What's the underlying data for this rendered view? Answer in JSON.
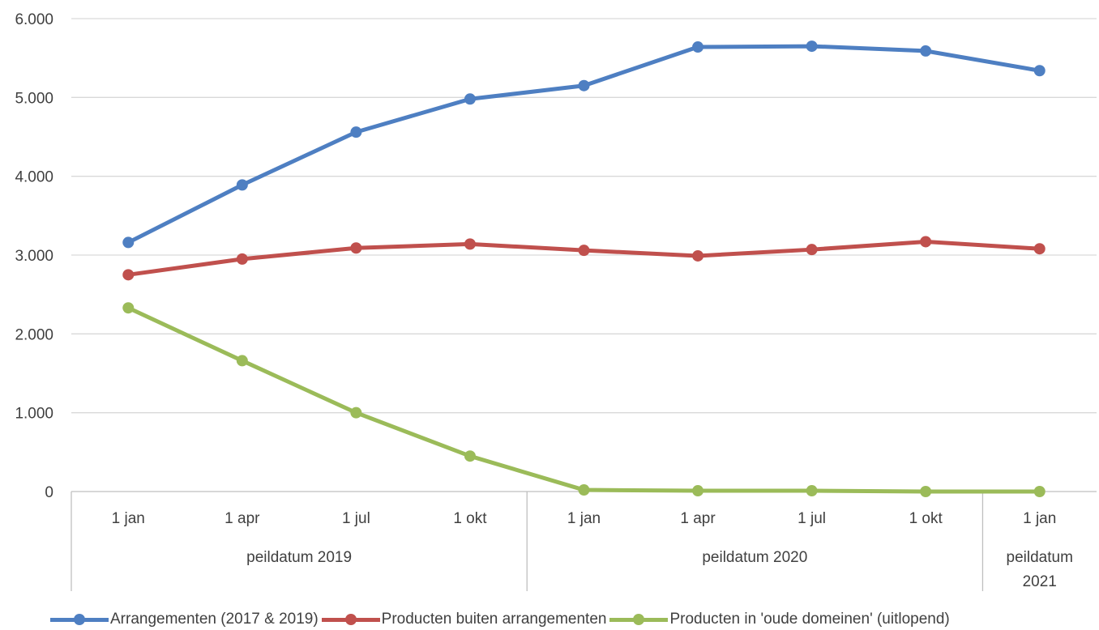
{
  "colors": {
    "background": "#ffffff",
    "grid": "#d9d9d9",
    "axis": "#bfbfbf",
    "text": "#404040"
  },
  "chart_data": {
    "type": "line",
    "categories": [
      "1 jan",
      "1 apr",
      "1 jul",
      "1 okt",
      "1 jan",
      "1 apr",
      "1 jul",
      "1 okt",
      "1 jan"
    ],
    "groups": [
      {
        "label": "peildatum 2019",
        "span": 4
      },
      {
        "label": "peildatum 2020",
        "span": 4
      },
      {
        "label": "peildatum 2021",
        "span": 1,
        "label_lines": [
          "peildatum",
          "2021"
        ]
      }
    ],
    "y_ticks": [
      "0",
      "1.000",
      "2.000",
      "3.000",
      "4.000",
      "5.000",
      "6.000"
    ],
    "ylim": [
      0,
      6000
    ],
    "grid": true,
    "legend_position": "bottom",
    "series": [
      {
        "name": "Arrangementen (2017 & 2019)",
        "color": "#4e7fc2",
        "values": [
          3160,
          3890,
          4560,
          4980,
          5150,
          5640,
          5650,
          5590,
          5340
        ]
      },
      {
        "name": "Producten buiten arrangementen",
        "color": "#c0504d",
        "values": [
          2750,
          2950,
          3090,
          3140,
          3060,
          2990,
          3070,
          3170,
          3080
        ]
      },
      {
        "name": "Producten in 'oude domeinen' (uitlopend)",
        "color": "#9bbb59",
        "values": [
          2330,
          1660,
          1000,
          450,
          20,
          10,
          10,
          0,
          0
        ]
      }
    ]
  }
}
